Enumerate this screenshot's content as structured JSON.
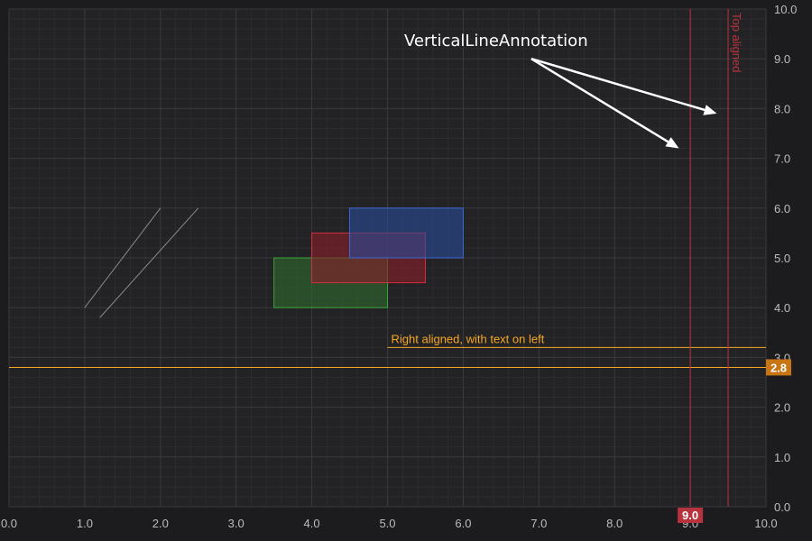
{
  "chart_data": {
    "type": "scatter",
    "title": "",
    "xlabel": "",
    "ylabel": "",
    "xlim": [
      0,
      10
    ],
    "ylim": [
      0,
      10
    ],
    "x_ticks": [
      "0.0",
      "1.0",
      "2.0",
      "3.0",
      "4.0",
      "5.0",
      "6.0",
      "7.0",
      "8.0",
      "9.0",
      "10.0"
    ],
    "y_ticks": [
      "0.0",
      "1.0",
      "2.0",
      "3.0",
      "4.0",
      "5.0",
      "6.0",
      "7.0",
      "8.0",
      "9.0",
      "10.0"
    ],
    "y_axis_side": "right",
    "grid": true,
    "theme": "dark",
    "line_annotations": [
      {
        "x1": 1.0,
        "y1": 4.0,
        "x2": 2.0,
        "y2": 6.0,
        "color": "#8a8a8a"
      },
      {
        "x1": 1.2,
        "y1": 3.8,
        "x2": 2.5,
        "y2": 6.0,
        "color": "#8a8a8a"
      }
    ],
    "box_annotations": [
      {
        "x1": 3.5,
        "y1": 4.0,
        "x2": 5.0,
        "y2": 5.0,
        "fill": "#2e6b2e",
        "stroke": "#3aa53a"
      },
      {
        "x1": 4.0,
        "y1": 4.5,
        "x2": 5.5,
        "y2": 5.5,
        "fill": "#8a1e2a",
        "stroke": "#d0303c"
      },
      {
        "x1": 4.5,
        "y1": 5.0,
        "x2": 6.0,
        "y2": 6.0,
        "fill": "#2a4b9a",
        "stroke": "#3c68d2"
      }
    ],
    "horizontal_lines": [
      {
        "y": 2.8,
        "color": "#f5a623",
        "axis_label": "2.8",
        "label_bg": "#c87412",
        "span": "full"
      },
      {
        "y": 3.2,
        "x1": 5.0,
        "color": "#f5a623",
        "label": "Right aligned, with text on left",
        "label_position": "left"
      }
    ],
    "vertical_lines": [
      {
        "x": 9.0,
        "color": "#b7323c",
        "axis_label": "9.0",
        "label_bg": "#b7323c"
      },
      {
        "x": 9.5,
        "color": "#b7323c",
        "label": "Top aligned",
        "label_position": "top"
      }
    ],
    "text_annotations": [
      {
        "text": "VerticalLineAnnotation",
        "color": "#ffffff"
      }
    ],
    "arrow_annotations": [
      {
        "x1": 6.9,
        "y1": 9.0,
        "x2": 9.35,
        "y2": 7.9,
        "color": "#ffffff"
      },
      {
        "x1": 6.9,
        "y1": 9.0,
        "x2": 8.85,
        "y2": 7.2,
        "color": "#ffffff"
      }
    ],
    "colors": {
      "background": "#1c1c1e",
      "plot_background": "#232325",
      "major_grid": "#3a3a3e",
      "minor_grid": "#2c2c2f",
      "tick_label": "#bdbdbd"
    }
  }
}
